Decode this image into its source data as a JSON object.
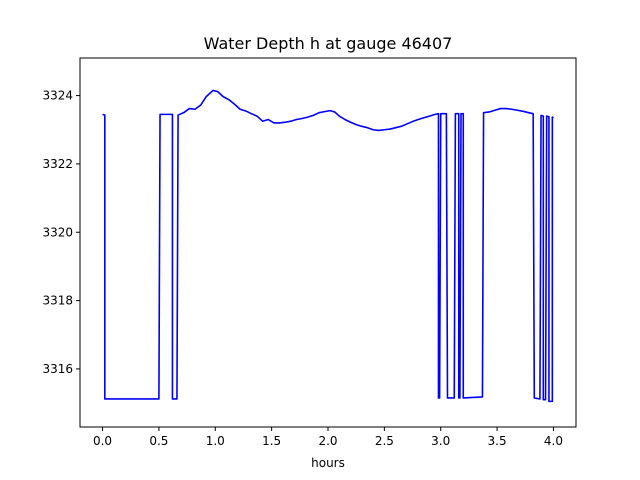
{
  "chart_data": {
    "type": "line",
    "title": "Water Depth h at gauge 46407",
    "xlabel": "hours",
    "ylabel": "",
    "xlim": [
      -0.2,
      4.2
    ],
    "ylim": [
      3314.3,
      3325.1
    ],
    "x_ticks": [
      0.0,
      0.5,
      1.0,
      1.5,
      2.0,
      2.5,
      3.0,
      3.5,
      4.0
    ],
    "x_tick_labels": [
      "0.0",
      "0.5",
      "1.0",
      "1.5",
      "2.0",
      "2.5",
      "3.0",
      "3.5",
      "4.0"
    ],
    "y_ticks": [
      3316,
      3318,
      3320,
      3322,
      3324
    ],
    "y_tick_labels": [
      "3316",
      "3318",
      "3320",
      "3322",
      "3324"
    ],
    "grid": false,
    "series": [
      {
        "color": "#0000ff",
        "points": [
          [
            0.0,
            3323.45
          ],
          [
            0.02,
            3323.43
          ],
          [
            0.02,
            3315.12
          ],
          [
            0.5,
            3315.12
          ],
          [
            0.51,
            3323.45
          ],
          [
            0.62,
            3323.45
          ],
          [
            0.62,
            3315.12
          ],
          [
            0.66,
            3315.12
          ],
          [
            0.67,
            3323.43
          ],
          [
            0.72,
            3323.5
          ],
          [
            0.77,
            3323.62
          ],
          [
            0.82,
            3323.6
          ],
          [
            0.87,
            3323.72
          ],
          [
            0.92,
            3323.97
          ],
          [
            0.98,
            3324.15
          ],
          [
            1.02,
            3324.12
          ],
          [
            1.07,
            3323.97
          ],
          [
            1.12,
            3323.88
          ],
          [
            1.17,
            3323.75
          ],
          [
            1.22,
            3323.6
          ],
          [
            1.27,
            3323.55
          ],
          [
            1.32,
            3323.47
          ],
          [
            1.37,
            3323.4
          ],
          [
            1.42,
            3323.25
          ],
          [
            1.47,
            3323.3
          ],
          [
            1.52,
            3323.2
          ],
          [
            1.57,
            3323.2
          ],
          [
            1.62,
            3323.22
          ],
          [
            1.67,
            3323.25
          ],
          [
            1.72,
            3323.3
          ],
          [
            1.77,
            3323.33
          ],
          [
            1.82,
            3323.37
          ],
          [
            1.87,
            3323.42
          ],
          [
            1.92,
            3323.5
          ],
          [
            1.97,
            3323.53
          ],
          [
            2.02,
            3323.56
          ],
          [
            2.06,
            3323.52
          ],
          [
            2.1,
            3323.4
          ],
          [
            2.15,
            3323.3
          ],
          [
            2.2,
            3323.22
          ],
          [
            2.25,
            3323.15
          ],
          [
            2.3,
            3323.1
          ],
          [
            2.35,
            3323.06
          ],
          [
            2.4,
            3323.0
          ],
          [
            2.45,
            3322.98
          ],
          [
            2.5,
            3323.0
          ],
          [
            2.55,
            3323.02
          ],
          [
            2.6,
            3323.06
          ],
          [
            2.65,
            3323.1
          ],
          [
            2.7,
            3323.17
          ],
          [
            2.75,
            3323.24
          ],
          [
            2.8,
            3323.3
          ],
          [
            2.85,
            3323.35
          ],
          [
            2.9,
            3323.4
          ],
          [
            2.95,
            3323.45
          ],
          [
            2.98,
            3323.47
          ],
          [
            2.98,
            3315.15
          ],
          [
            2.99,
            3315.15
          ],
          [
            3.0,
            3323.47
          ],
          [
            3.05,
            3323.47
          ],
          [
            3.06,
            3315.15
          ],
          [
            3.12,
            3315.15
          ],
          [
            3.13,
            3323.47
          ],
          [
            3.16,
            3323.47
          ],
          [
            3.16,
            3315.15
          ],
          [
            3.17,
            3315.15
          ],
          [
            3.18,
            3323.47
          ],
          [
            3.2,
            3323.47
          ],
          [
            3.2,
            3315.15
          ],
          [
            3.37,
            3315.18
          ],
          [
            3.38,
            3323.5
          ],
          [
            3.43,
            3323.52
          ],
          [
            3.48,
            3323.57
          ],
          [
            3.53,
            3323.62
          ],
          [
            3.58,
            3323.62
          ],
          [
            3.63,
            3323.6
          ],
          [
            3.68,
            3323.57
          ],
          [
            3.73,
            3323.54
          ],
          [
            3.78,
            3323.5
          ],
          [
            3.82,
            3323.47
          ],
          [
            3.83,
            3315.15
          ],
          [
            3.88,
            3315.12
          ],
          [
            3.89,
            3323.42
          ],
          [
            3.91,
            3323.4
          ],
          [
            3.91,
            3315.1
          ],
          [
            3.93,
            3315.1
          ],
          [
            3.94,
            3323.4
          ],
          [
            3.96,
            3323.38
          ],
          [
            3.96,
            3315.05
          ],
          [
            3.99,
            3315.05
          ],
          [
            3.99,
            3323.37
          ],
          [
            4.0,
            3323.35
          ]
        ]
      }
    ]
  }
}
